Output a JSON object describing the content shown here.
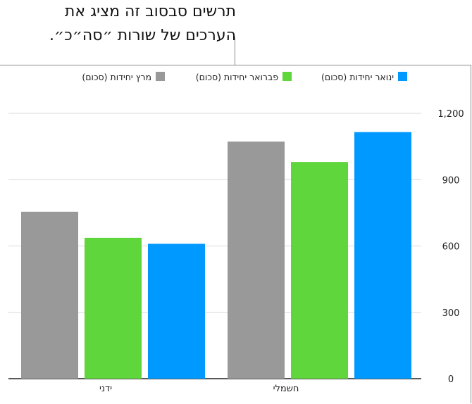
{
  "callout": {
    "line1": "תרשים סבסוב זה מציג את",
    "line2": "הערכים של שורות ״סה״כ״."
  },
  "colors": {
    "series": [
      "#0099ff",
      "#5fd63b",
      "#999999"
    ],
    "grid": "#d9d9d9",
    "axis": "#222222",
    "text": "#222222"
  },
  "chart_data": {
    "type": "bar",
    "categories": [
      "חשמלי",
      "ידני"
    ],
    "series": [
      {
        "name": "ינואר יחידות (סכום)",
        "values": [
          1115,
          610
        ]
      },
      {
        "name": "פברואר יחידות (סכום)",
        "values": [
          980,
          637
        ]
      },
      {
        "name": "מרץ יחידות (סכום)",
        "values": [
          1072,
          755
        ]
      }
    ],
    "ylim": [
      0,
      1200
    ],
    "yticks": [
      "0",
      "300",
      "600",
      "900",
      "1,200"
    ],
    "ytick_values": [
      0,
      300,
      600,
      900,
      1200
    ],
    "axis_side": "right",
    "direction": "rtl",
    "legend_position": "top",
    "grid": true
  }
}
